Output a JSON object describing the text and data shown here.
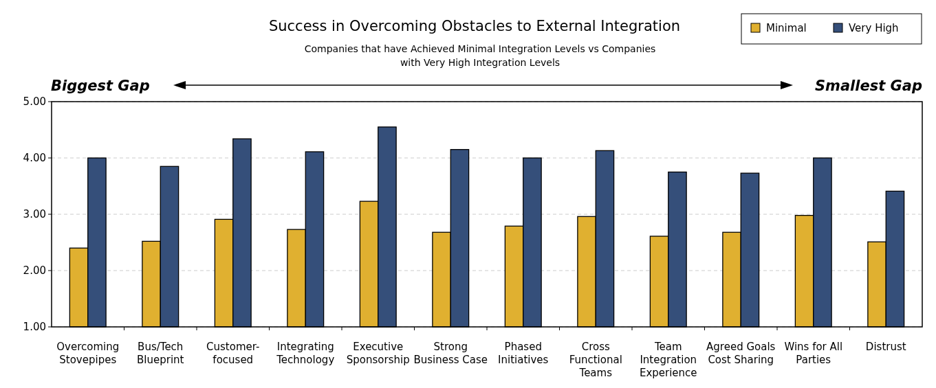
{
  "chart_data": {
    "type": "bar",
    "title": "Success in Overcoming Obstacles to External Integration",
    "subtitle": "Companies that have Achieved Minimal Integration Levels vs Companies with Very High Integration Levels",
    "categories": [
      "Overcoming Stovepipes",
      "Bus/Tech Blueprint",
      "Customer-focused",
      "Integrating Technology",
      "Executive Sponsorship",
      "Strong Business Case",
      "Phased Initiatives",
      "Cross Functional Teams",
      "Team Integration Experience",
      "Agreed Goals Cost Sharing",
      "Wins for All Parties",
      "Distrust"
    ],
    "series": [
      {
        "name": "Minimal",
        "color": "#e0b030",
        "values": [
          2.4,
          2.52,
          2.91,
          2.73,
          3.23,
          2.68,
          2.79,
          2.96,
          2.61,
          2.68,
          2.98,
          2.51
        ]
      },
      {
        "name": "Very High",
        "color": "#354f7a",
        "values": [
          4.0,
          3.85,
          4.34,
          4.11,
          4.55,
          4.15,
          4.0,
          4.13,
          3.75,
          3.73,
          4.0,
          3.41
        ]
      }
    ],
    "ylim": [
      1,
      5
    ],
    "yticks": [
      {
        "value": 1,
        "label": "1.00"
      },
      {
        "value": 2,
        "label": "2.00"
      },
      {
        "value": 3,
        "label": "3.00"
      },
      {
        "value": 4,
        "label": "4.00"
      },
      {
        "value": 5,
        "label": "5.00"
      }
    ],
    "grid": "y",
    "legend": "top right",
    "annotations": [
      "Biggest Gap",
      "Smallest Gap"
    ]
  }
}
